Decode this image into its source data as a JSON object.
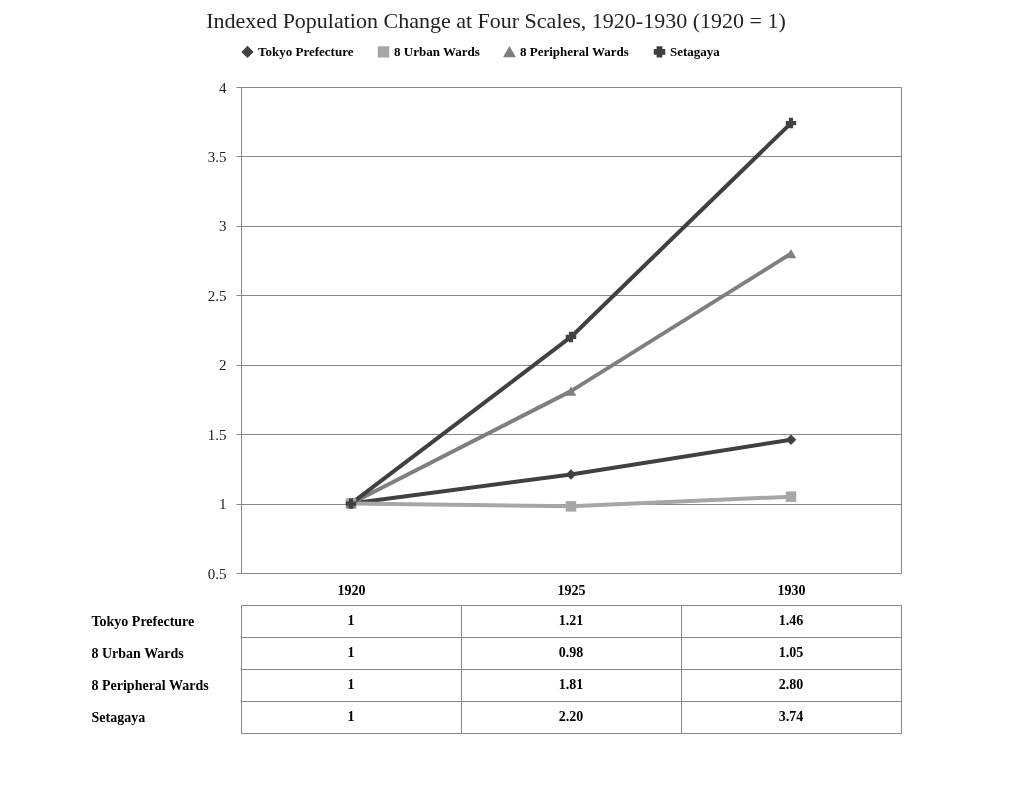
{
  "chart_data": {
    "type": "line",
    "title": "Indexed Population Change at Four Scales, 1920-1930 (1920 = 1)",
    "categories": [
      "1920",
      "1925",
      "1930"
    ],
    "series": [
      {
        "name": "Tokyo Prefecture",
        "color": "#404040",
        "marker": "diamond",
        "values": [
          1,
          1.21,
          1.46
        ],
        "value_labels": [
          "1",
          "1.21",
          "1.46"
        ]
      },
      {
        "name": "8 Urban Wards",
        "color": "#a6a6a6",
        "marker": "square",
        "values": [
          1,
          0.98,
          1.05
        ],
        "value_labels": [
          "1",
          "0.98",
          "1.05"
        ]
      },
      {
        "name": "8 Peripheral Wards",
        "color": "#7f7f7f",
        "marker": "triangle",
        "values": [
          1,
          1.81,
          2.8
        ],
        "value_labels": [
          "1",
          "1.81",
          "2.80"
        ]
      },
      {
        "name": "Setagaya",
        "color": "#404040",
        "marker": "cross",
        "values": [
          1,
          2.2,
          3.74
        ],
        "value_labels": [
          "1",
          "2.20",
          "3.74"
        ]
      }
    ],
    "ylim": [
      0.5,
      4
    ],
    "yticks": [
      0.5,
      1,
      1.5,
      2,
      2.5,
      3,
      3.5,
      4
    ],
    "grid": "y",
    "legend": "top"
  }
}
